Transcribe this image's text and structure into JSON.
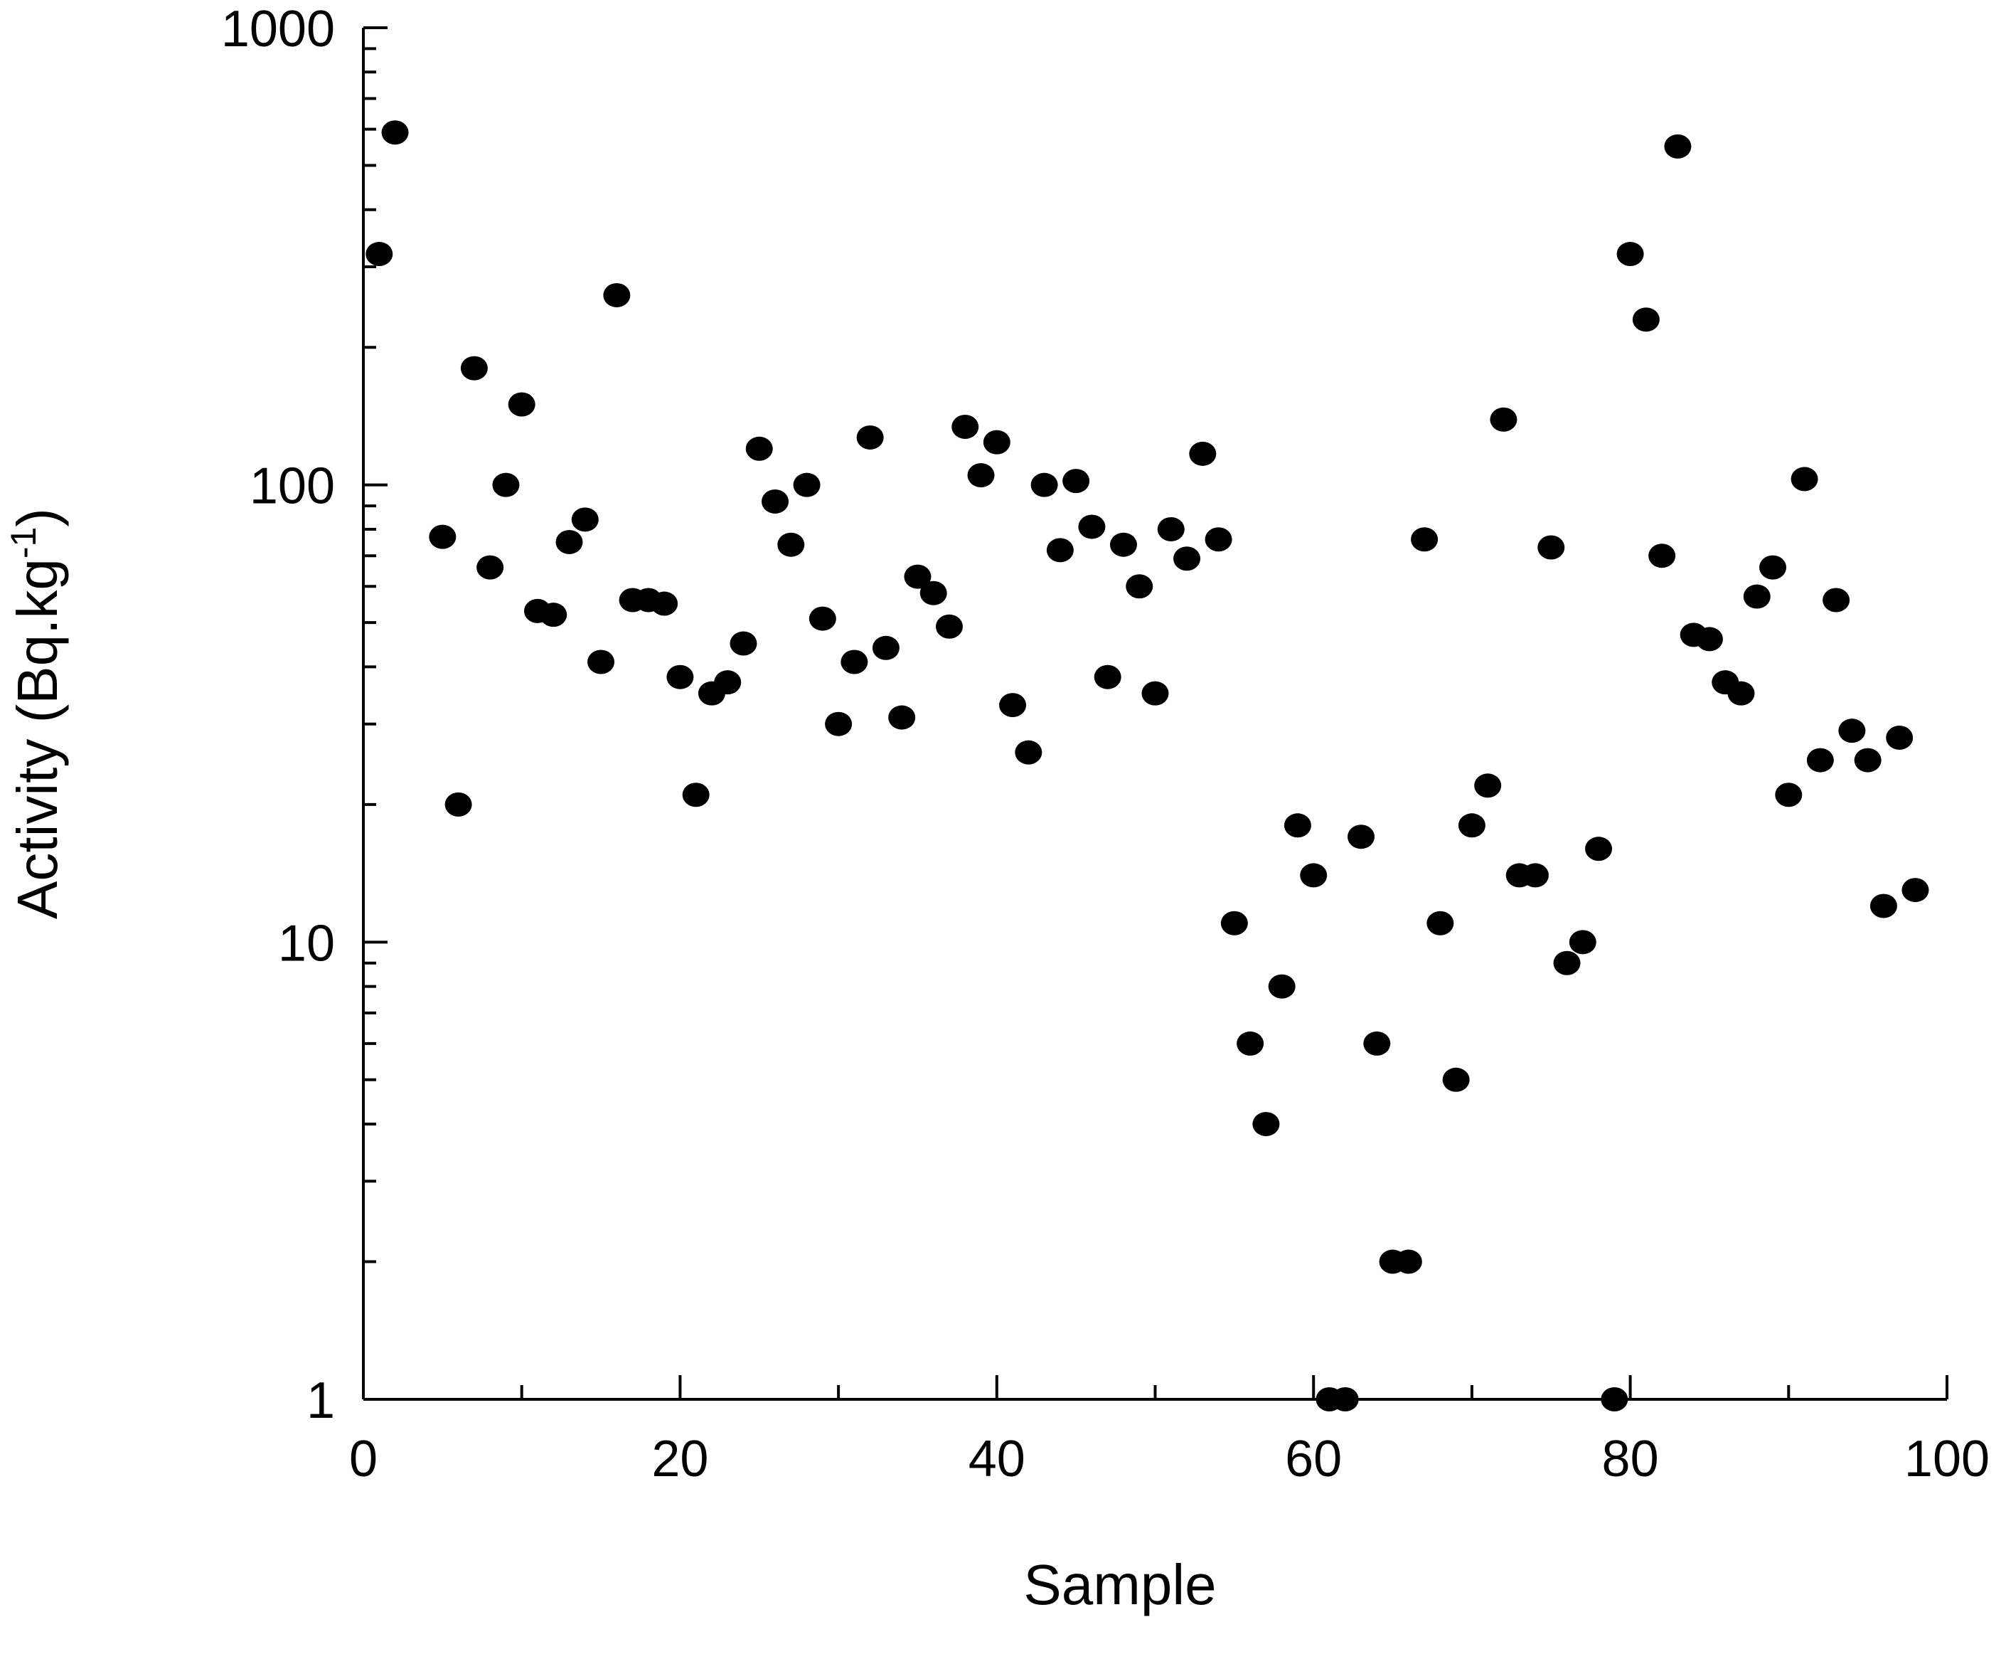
{
  "chart_data": {
    "type": "scatter",
    "title": "",
    "xlabel": "Sample",
    "ylabel_main": "Activity (Bq.kg",
    "ylabel_sup": "-1",
    "ylabel_close": ")",
    "xlim": [
      0,
      100
    ],
    "ylim": [
      1,
      1000
    ],
    "yscale": "log",
    "grid": false,
    "x_tick_labels": [
      "0",
      "20",
      "40",
      "60",
      "80",
      "100"
    ],
    "y_tick_labels": [
      "1",
      "10",
      "100",
      "1000"
    ],
    "marker_color": "#000000",
    "series": [
      {
        "points": [
          [
            1,
            320
          ],
          [
            2,
            590
          ],
          [
            5,
            77
          ],
          [
            6,
            20
          ],
          [
            7,
            180
          ],
          [
            8,
            66
          ],
          [
            9,
            100
          ],
          [
            10,
            150
          ],
          [
            11,
            53
          ],
          [
            12,
            52
          ],
          [
            13,
            75
          ],
          [
            14,
            84
          ],
          [
            15,
            41
          ],
          [
            16,
            260
          ],
          [
            17,
            56
          ],
          [
            18,
            56
          ],
          [
            19,
            55
          ],
          [
            20,
            38
          ],
          [
            21,
            21
          ],
          [
            22,
            35
          ],
          [
            23,
            37
          ],
          [
            24,
            45
          ],
          [
            25,
            120
          ],
          [
            26,
            92
          ],
          [
            27,
            74
          ],
          [
            28,
            100
          ],
          [
            29,
            51
          ],
          [
            30,
            30
          ],
          [
            31,
            41
          ],
          [
            32,
            127
          ],
          [
            33,
            44
          ],
          [
            34,
            31
          ],
          [
            35,
            63
          ],
          [
            36,
            58
          ],
          [
            37,
            49
          ],
          [
            38,
            134
          ],
          [
            39,
            105
          ],
          [
            40,
            124
          ],
          [
            41,
            33
          ],
          [
            42,
            26
          ],
          [
            43,
            100
          ],
          [
            44,
            72
          ],
          [
            45,
            102
          ],
          [
            46,
            81
          ],
          [
            47,
            38
          ],
          [
            48,
            74
          ],
          [
            49,
            60
          ],
          [
            50,
            35
          ],
          [
            51,
            80
          ],
          [
            52,
            69
          ],
          [
            53,
            117
          ],
          [
            54,
            76
          ],
          [
            55,
            11
          ],
          [
            56,
            6
          ],
          [
            57,
            4
          ],
          [
            58,
            8
          ],
          [
            59,
            18
          ],
          [
            60,
            14
          ],
          [
            61,
            1
          ],
          [
            62,
            1
          ],
          [
            63,
            17
          ],
          [
            64,
            6
          ],
          [
            65,
            2
          ],
          [
            66,
            2
          ],
          [
            67,
            76
          ],
          [
            68,
            11
          ],
          [
            69,
            5
          ],
          [
            70,
            18
          ],
          [
            71,
            22
          ],
          [
            72,
            139
          ],
          [
            73,
            14
          ],
          [
            74,
            14
          ],
          [
            75,
            73
          ],
          [
            76,
            9
          ],
          [
            77,
            10
          ],
          [
            78,
            16
          ],
          [
            79,
            1
          ],
          [
            80,
            320
          ],
          [
            81,
            230
          ],
          [
            82,
            70
          ],
          [
            83,
            550
          ],
          [
            84,
            47
          ],
          [
            85,
            46
          ],
          [
            86,
            37
          ],
          [
            87,
            35
          ],
          [
            88,
            57
          ],
          [
            89,
            66
          ],
          [
            90,
            21
          ],
          [
            91,
            103
          ],
          [
            92,
            25
          ],
          [
            93,
            56
          ],
          [
            94,
            29
          ],
          [
            95,
            25
          ],
          [
            96,
            12
          ],
          [
            97,
            28
          ],
          [
            98,
            13
          ]
        ]
      }
    ]
  }
}
